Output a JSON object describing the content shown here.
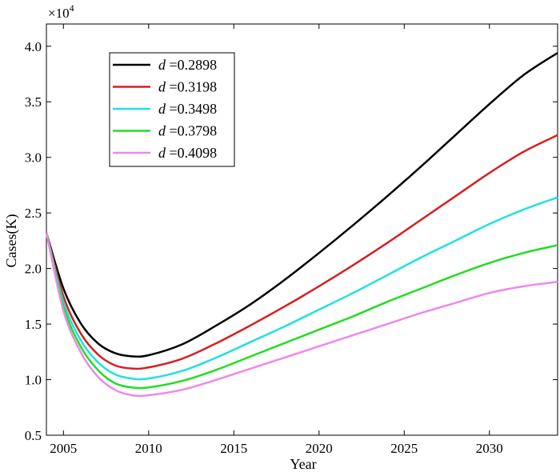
{
  "chart_data": {
    "type": "line",
    "title": "",
    "xlabel": "Year",
    "ylabel": "Cases(K)",
    "y_multiplier_label": "×10",
    "y_multiplier_exponent": "4",
    "xlim": [
      2004,
      2034
    ],
    "ylim": [
      0.5,
      4.2
    ],
    "xticks": [
      "2005",
      "2010",
      "2015",
      "2020",
      "2025",
      "2030"
    ],
    "yticks": [
      "0.5",
      "1.0",
      "1.5",
      "2.0",
      "2.5",
      "3.0",
      "3.5",
      "4.0"
    ],
    "grid": false,
    "legend_position": "top-left",
    "legend_variable": "d",
    "x": [
      2004,
      2005,
      2006,
      2007,
      2008,
      2009,
      2010,
      2012,
      2014,
      2016,
      2018,
      2020,
      2022,
      2024,
      2026,
      2028,
      2030,
      2032,
      2034
    ],
    "series": [
      {
        "name": "=0.2898",
        "color": "#000000",
        "values": [
          2.32,
          1.82,
          1.51,
          1.33,
          1.24,
          1.21,
          1.22,
          1.32,
          1.49,
          1.68,
          1.9,
          2.14,
          2.39,
          2.65,
          2.92,
          3.2,
          3.48,
          3.74,
          3.94
        ]
      },
      {
        "name": "=0.3198",
        "color": "#d62020",
        "values": [
          2.32,
          1.75,
          1.42,
          1.23,
          1.13,
          1.1,
          1.11,
          1.19,
          1.33,
          1.49,
          1.66,
          1.84,
          2.03,
          2.23,
          2.44,
          2.65,
          2.86,
          3.05,
          3.2
        ]
      },
      {
        "name": "=0.3498",
        "color": "#22e0e0",
        "values": [
          2.32,
          1.7,
          1.36,
          1.16,
          1.05,
          1.01,
          1.01,
          1.08,
          1.2,
          1.34,
          1.48,
          1.63,
          1.78,
          1.94,
          2.1,
          2.25,
          2.4,
          2.53,
          2.64
        ]
      },
      {
        "name": "=0.3798",
        "color": "#22dd22",
        "values": [
          2.32,
          1.66,
          1.3,
          1.09,
          0.97,
          0.93,
          0.93,
          0.99,
          1.09,
          1.21,
          1.33,
          1.45,
          1.57,
          1.7,
          1.82,
          1.94,
          2.05,
          2.14,
          2.21
        ]
      },
      {
        "name": "=0.4098",
        "color": "#ee88ee",
        "values": [
          2.32,
          1.62,
          1.25,
          1.03,
          0.91,
          0.86,
          0.86,
          0.91,
          1.0,
          1.1,
          1.2,
          1.3,
          1.4,
          1.5,
          1.6,
          1.69,
          1.78,
          1.84,
          1.88
        ]
      }
    ]
  }
}
